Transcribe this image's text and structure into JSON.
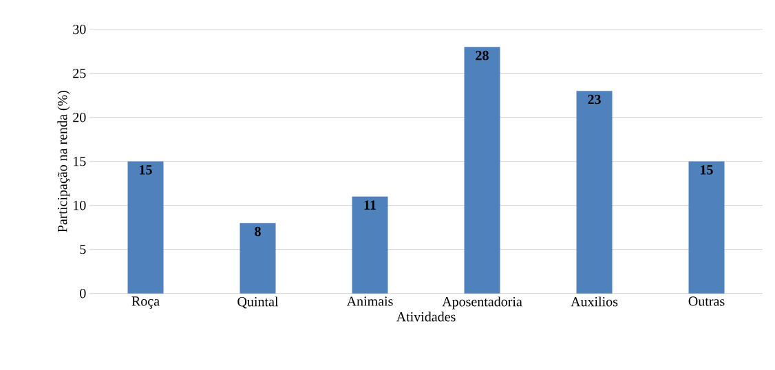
{
  "chart_data": {
    "type": "bar",
    "xlabel": "Atividades",
    "ylabel": "Participação na renda (%)",
    "categories": [
      "Roça",
      "Quintal",
      "Animais",
      "Aposentadoria",
      "Auxilios",
      "Outras"
    ],
    "values": [
      15,
      8,
      11,
      28,
      23,
      15
    ],
    "color": "#4f81bd",
    "ylim": [
      0,
      30
    ],
    "yticks": [
      0,
      5,
      10,
      15,
      20,
      25,
      30
    ],
    "grid": "y",
    "data_labels": true
  }
}
